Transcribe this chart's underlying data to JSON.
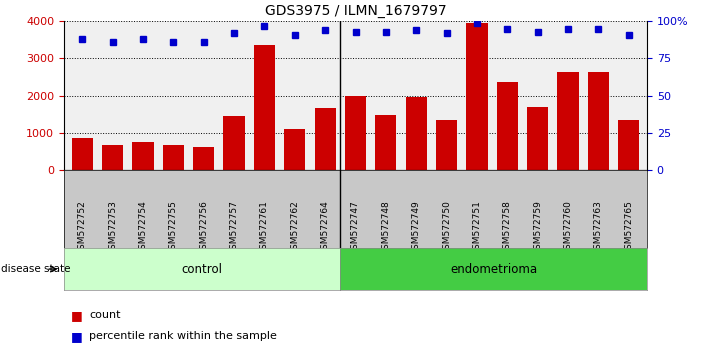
{
  "title": "GDS3975 / ILMN_1679797",
  "samples": [
    "GSM572752",
    "GSM572753",
    "GSM572754",
    "GSM572755",
    "GSM572756",
    "GSM572757",
    "GSM572761",
    "GSM572762",
    "GSM572764",
    "GSM572747",
    "GSM572748",
    "GSM572749",
    "GSM572750",
    "GSM572751",
    "GSM572758",
    "GSM572759",
    "GSM572760",
    "GSM572763",
    "GSM572765"
  ],
  "counts": [
    870,
    670,
    750,
    680,
    620,
    1450,
    3360,
    1100,
    1660,
    2000,
    1480,
    1970,
    1340,
    3950,
    2370,
    1680,
    2640,
    2640,
    1330
  ],
  "percentiles": [
    88,
    86,
    88,
    86,
    86,
    92,
    97,
    91,
    94,
    93,
    93,
    94,
    92,
    99,
    95,
    93,
    95,
    95,
    91
  ],
  "control_count": 9,
  "endometrioma_count": 10,
  "bar_color": "#cc0000",
  "dot_color": "#0000cc",
  "control_color": "#ccffcc",
  "endometrioma_color": "#44cc44",
  "plot_bg": "#f0f0f0",
  "xtick_bg": "#c8c8c8",
  "ylim_left": [
    0,
    4000
  ],
  "ylim_right": [
    0,
    100
  ],
  "yticks_left": [
    0,
    1000,
    2000,
    3000,
    4000
  ],
  "yticks_right": [
    0,
    25,
    50,
    75,
    100
  ],
  "legend_count_label": "count",
  "legend_pct_label": "percentile rank within the sample"
}
